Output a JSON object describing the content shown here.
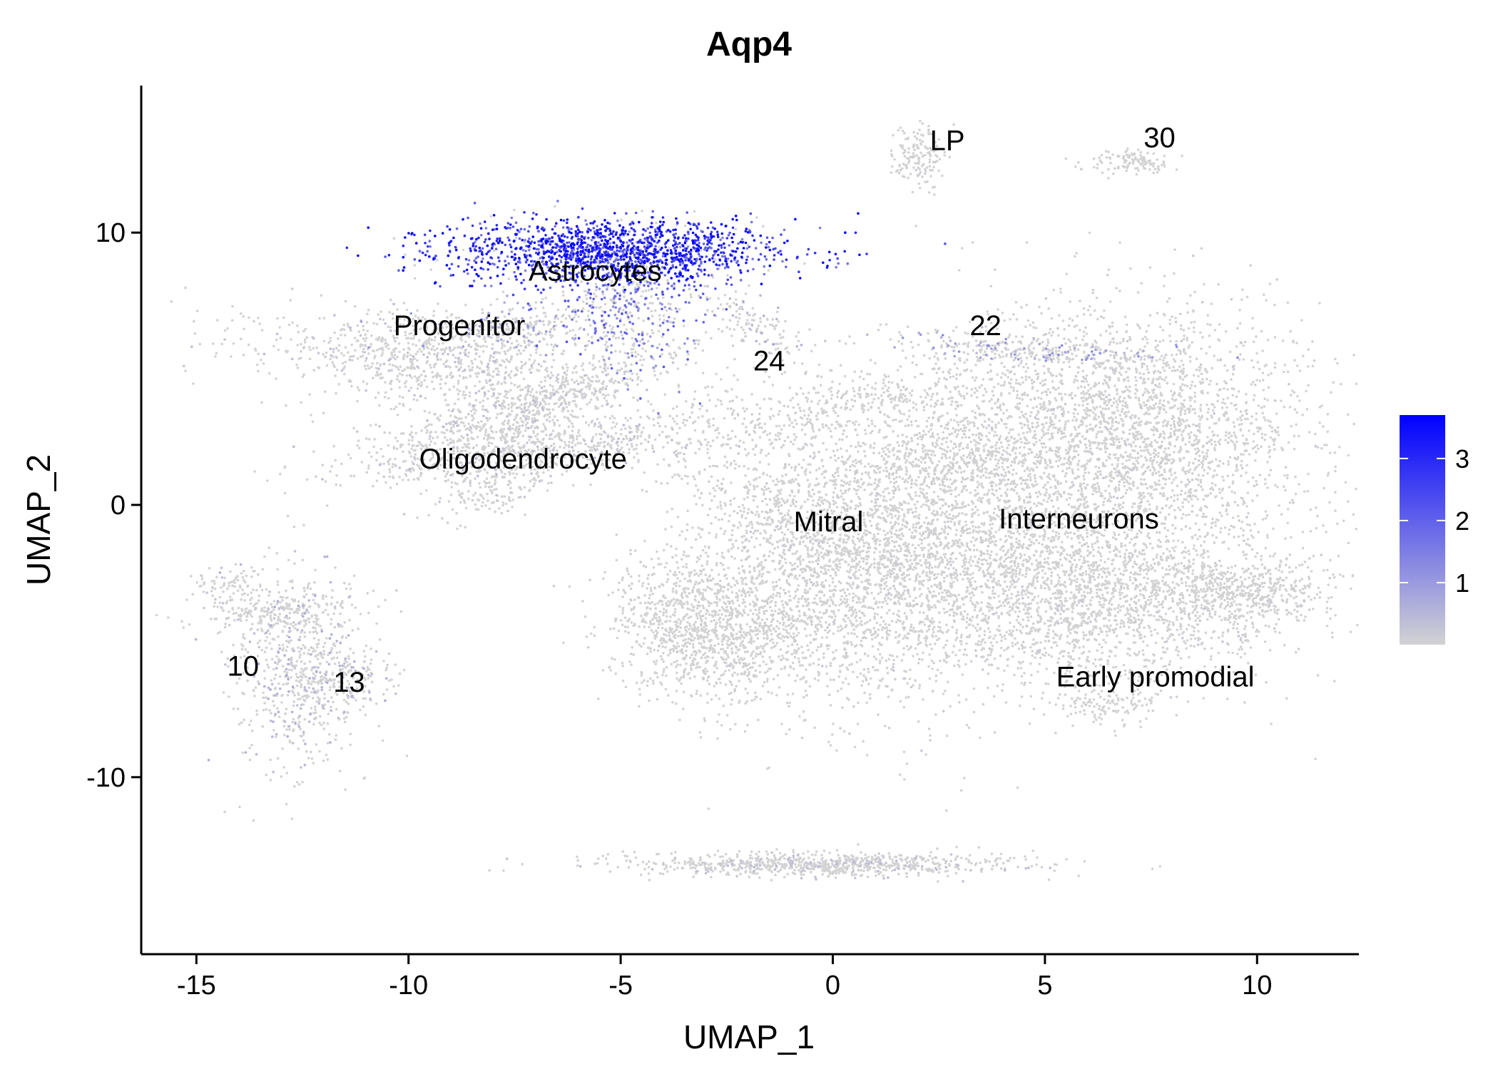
{
  "chart_data": {
    "type": "scatter",
    "title": "Aqp4",
    "xlabel": "UMAP_1",
    "ylabel": "UMAP_2",
    "xlim": [
      -16.3,
      12.4
    ],
    "ylim": [
      -16.5,
      15.4
    ],
    "x_ticks": [
      -15,
      -10,
      -5,
      0,
      5,
      10
    ],
    "x_tick_labels": [
      "-15",
      "-10",
      "-5",
      "0",
      "5",
      "10"
    ],
    "y_ticks": [
      -10,
      0,
      10
    ],
    "y_tick_labels": [
      "-10",
      "0",
      "10"
    ],
    "grid": false,
    "colors": {
      "low": "#d3d3d3",
      "high": "#0000ff"
    },
    "legend": {
      "position": "right",
      "type": "colorbar",
      "range": [
        0,
        3.7
      ],
      "ticks": [
        1,
        2,
        3
      ],
      "tick_labels": [
        "1",
        "2",
        "3"
      ]
    },
    "cluster_labels": [
      {
        "text": "LP",
        "x": 2.7,
        "y": 13.4
      },
      {
        "text": "30",
        "x": 7.7,
        "y": 13.5
      },
      {
        "text": "Astrocytes",
        "x": -5.6,
        "y": 8.6
      },
      {
        "text": "Progenitor",
        "x": -8.8,
        "y": 6.6
      },
      {
        "text": "22",
        "x": 3.6,
        "y": 6.6
      },
      {
        "text": "24",
        "x": -1.5,
        "y": 5.3
      },
      {
        "text": "Oligodendrocyte",
        "x": -7.3,
        "y": 1.7
      },
      {
        "text": "Mitral",
        "x": -0.1,
        "y": -0.6
      },
      {
        "text": "Interneurons",
        "x": 5.8,
        "y": -0.5
      },
      {
        "text": "10",
        "x": -13.9,
        "y": -5.9
      },
      {
        "text": "13",
        "x": -11.4,
        "y": -6.5
      },
      {
        "text": "Early promodial",
        "x": 7.6,
        "y": -6.3
      }
    ],
    "clusters": [
      {
        "cx": -5.2,
        "cy": 9.3,
        "sx": 2.0,
        "sy": 0.6,
        "n": 1500,
        "expr": 2.8,
        "rot": 0
      },
      {
        "cx": -4.9,
        "cy": 7.4,
        "sx": 0.9,
        "sy": 1.3,
        "n": 500,
        "expr": 1.6,
        "rot": 0
      },
      {
        "cx": -9.4,
        "cy": 5.2,
        "sx": 2.2,
        "sy": 0.8,
        "n": 900,
        "expr": 0.3,
        "rot": -0.2
      },
      {
        "cx": -7.6,
        "cy": 6.6,
        "sx": 1.2,
        "sy": 0.4,
        "n": 250,
        "expr": 0.8,
        "rot": 0
      },
      {
        "cx": -8.6,
        "cy": 2.8,
        "sx": 1.6,
        "sy": 0.6,
        "n": 350,
        "expr": 0.3,
        "rot": 0.5
      },
      {
        "cx": -6.2,
        "cy": 4.0,
        "sx": 1.6,
        "sy": 0.4,
        "n": 350,
        "expr": 0.3,
        "rot": 0.6
      },
      {
        "cx": -6.4,
        "cy": 2.1,
        "sx": 2.4,
        "sy": 0.5,
        "n": 700,
        "expr": 0.3,
        "rot": 0.18
      },
      {
        "cx": -8.0,
        "cy": 0.6,
        "sx": 0.8,
        "sy": 0.5,
        "n": 150,
        "expr": 0.2,
        "rot": 0.5
      },
      {
        "cx": -1.8,
        "cy": 6.6,
        "sx": 0.9,
        "sy": 0.3,
        "n": 120,
        "expr": 0.5,
        "rot": -0.8
      },
      {
        "cx": 2.0,
        "cy": 12.8,
        "sx": 0.3,
        "sy": 0.6,
        "n": 150,
        "expr": 0.1,
        "rot": 0
      },
      {
        "cx": 7.0,
        "cy": 12.6,
        "sx": 0.5,
        "sy": 0.25,
        "n": 120,
        "expr": 0.1,
        "rot": 0
      },
      {
        "cx": 4.5,
        "cy": 5.7,
        "sx": 1.8,
        "sy": 0.25,
        "n": 250,
        "expr": 0.9,
        "rot": -0.1
      },
      {
        "cx": 6.7,
        "cy": 2.6,
        "sx": 2.2,
        "sy": 2.4,
        "n": 3000,
        "expr": 0.15,
        "rot": 0
      },
      {
        "cx": 6.0,
        "cy": -3.5,
        "sx": 2.6,
        "sy": 1.6,
        "n": 2200,
        "expr": 0.15,
        "rot": 0
      },
      {
        "cx": 9.6,
        "cy": -3.2,
        "sx": 1.0,
        "sy": 0.5,
        "n": 400,
        "expr": 0.1,
        "rot": 0
      },
      {
        "cx": 6.5,
        "cy": -7.3,
        "sx": 0.6,
        "sy": 0.4,
        "n": 120,
        "expr": 0.1,
        "rot": 0
      },
      {
        "cx": -0.2,
        "cy": -2.0,
        "sx": 1.6,
        "sy": 3.0,
        "n": 2000,
        "expr": 0.15,
        "rot": 0.3
      },
      {
        "cx": -3.5,
        "cy": -4.3,
        "sx": 1.0,
        "sy": 1.2,
        "n": 700,
        "expr": 0.1,
        "rot": 0
      },
      {
        "cx": -2.2,
        "cy": -5.2,
        "sx": 1.0,
        "sy": 1.2,
        "n": 500,
        "expr": 0.1,
        "rot": 0
      },
      {
        "cx": 2.3,
        "cy": -1.0,
        "sx": 2.0,
        "sy": 1.6,
        "n": 1300,
        "expr": 0.12,
        "rot": 0
      },
      {
        "cx": 2.8,
        "cy": 1.9,
        "sx": 1.2,
        "sy": 1.0,
        "n": 500,
        "expr": 0.12,
        "rot": 0
      },
      {
        "cx": 0.5,
        "cy": 3.8,
        "sx": 1.8,
        "sy": 0.5,
        "n": 300,
        "expr": 0.1,
        "rot": 0.3
      },
      {
        "cx": -12.6,
        "cy": -6.0,
        "sx": 0.8,
        "sy": 1.8,
        "n": 650,
        "expr": 0.5,
        "rot": 0
      },
      {
        "cx": -13.2,
        "cy": -3.8,
        "sx": 1.0,
        "sy": 0.4,
        "n": 200,
        "expr": 0.2,
        "rot": 0
      },
      {
        "cx": -11.5,
        "cy": -6.3,
        "sx": 0.6,
        "sy": 0.5,
        "n": 150,
        "expr": 0.4,
        "rot": 0
      },
      {
        "cx": -14.2,
        "cy": -2.8,
        "sx": 0.5,
        "sy": 0.3,
        "n": 60,
        "expr": 0.2,
        "rot": 0
      },
      {
        "cx": -0.2,
        "cy": -13.2,
        "sx": 2.4,
        "sy": 0.22,
        "n": 800,
        "expr": 0.3,
        "rot": 0
      }
    ]
  }
}
